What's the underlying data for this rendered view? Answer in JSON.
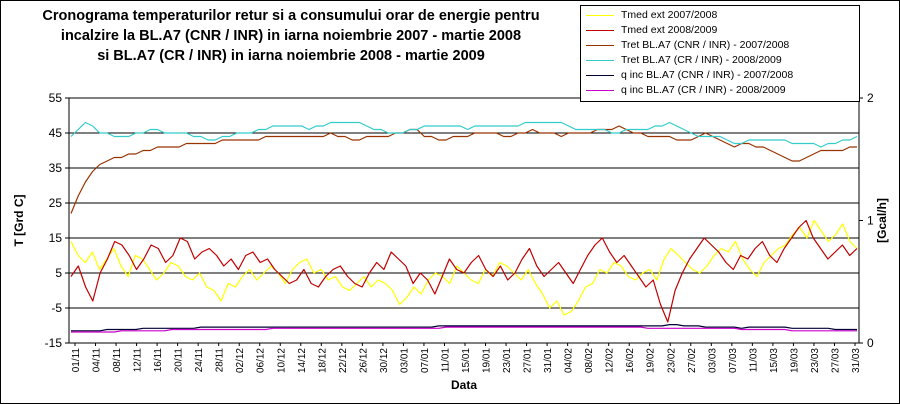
{
  "title_lines": [
    "Cronograma temperaturilor retur si a consumului orar de energie pentru",
    "incalzire la BL.A7 (CNR / INR) in iarna noiembrie 2007 - martie 2008",
    "si BL.A7 (CR / INR) in iarna noiembrie 2008 - martie 2009"
  ],
  "chart_data": {
    "type": "line",
    "xlabel": "Data",
    "ylabel": "T [Grd C]",
    "y2label": "[Gcal/h]",
    "ylim": [
      -15,
      55
    ],
    "yticks": [
      -15,
      -5,
      5,
      15,
      25,
      35,
      45,
      55
    ],
    "ytick_labels": [
      "-15",
      "-5",
      "5",
      "15",
      "25",
      "35",
      "45",
      "55"
    ],
    "y2lim": [
      0,
      2
    ],
    "y2ticks": [
      0,
      1,
      2
    ],
    "y2tick_labels": [
      "0",
      "1",
      "2"
    ],
    "grid": "horizontal",
    "x_tick_labels": [
      "01/11",
      "04/11",
      "08/11",
      "12/11",
      "16/11",
      "20/11",
      "24/11",
      "28/11",
      "02/12",
      "06/12",
      "10/12",
      "14/12",
      "18/12",
      "22/12",
      "26/12",
      "30/12",
      "03/01",
      "07/01",
      "11/01",
      "15/01",
      "19/01",
      "23/01",
      "27/01",
      "31/01",
      "04/02",
      "08/02",
      "12/02",
      "16/02",
      "19/02",
      "23/02",
      "27/02",
      "03/03",
      "07/03",
      "11/03",
      "15/03",
      "19/03",
      "23/03",
      "27/03",
      "31/03"
    ],
    "series": [
      {
        "name": "Tmed ext 2007/2008",
        "color": "#ffff00",
        "axis": "left",
        "values": [
          14,
          10,
          8,
          11,
          6,
          9,
          12,
          7,
          4,
          10,
          9,
          6,
          3,
          5,
          8,
          7,
          4,
          3,
          5,
          1,
          0,
          -3,
          2,
          1,
          4,
          6,
          3,
          5,
          7,
          5,
          2,
          6,
          8,
          9,
          5,
          6,
          3,
          4,
          1,
          0,
          2,
          4,
          1,
          3,
          2,
          0,
          -4,
          -2,
          1,
          -1,
          3,
          5,
          4,
          2,
          7,
          5,
          3,
          2,
          6,
          4,
          8,
          7,
          5,
          3,
          6,
          2,
          -1,
          -5,
          -3,
          -7,
          -6,
          -3,
          1,
          2,
          6,
          5,
          8,
          7,
          4,
          3,
          5,
          6,
          3,
          9,
          12,
          10,
          8,
          6,
          5,
          7,
          10,
          12,
          11,
          14,
          9,
          6,
          4,
          8,
          10,
          12,
          13,
          16,
          18,
          15,
          20,
          17,
          14,
          16,
          19,
          14,
          12
        ]
      },
      {
        "name": "Tmed ext 2008/2009",
        "color": "#c00000",
        "axis": "left",
        "values": [
          4,
          7,
          1,
          -3,
          5,
          9,
          14,
          13,
          10,
          6,
          9,
          13,
          12,
          8,
          10,
          15,
          14,
          9,
          11,
          12,
          10,
          7,
          9,
          6,
          10,
          11,
          8,
          9,
          6,
          4,
          2,
          3,
          6,
          2,
          1,
          4,
          6,
          7,
          4,
          2,
          1,
          5,
          8,
          6,
          11,
          9,
          7,
          2,
          5,
          3,
          -1,
          4,
          9,
          6,
          5,
          8,
          10,
          6,
          4,
          7,
          3,
          5,
          9,
          12,
          7,
          4,
          6,
          8,
          5,
          2,
          6,
          10,
          13,
          15,
          11,
          8,
          10,
          7,
          4,
          1,
          3,
          -4,
          -9,
          0,
          5,
          9,
          12,
          15,
          13,
          11,
          8,
          6,
          10,
          9,
          12,
          14,
          10,
          8,
          12,
          15,
          18,
          20,
          15,
          12,
          9,
          11,
          13,
          10,
          12
        ]
      },
      {
        "name": "Tret BL.A7 (CNR / INR) - 2007/2008",
        "color": "#993300",
        "axis": "left",
        "values": [
          22,
          27,
          31,
          34,
          36,
          37,
          38,
          38,
          39,
          39,
          40,
          40,
          41,
          41,
          41,
          41,
          42,
          42,
          42,
          42,
          42,
          43,
          43,
          43,
          43,
          43,
          43,
          44,
          44,
          44,
          44,
          44,
          44,
          44,
          44,
          44,
          45,
          44,
          44,
          43,
          43,
          44,
          44,
          44,
          44,
          45,
          45,
          46,
          46,
          44,
          44,
          43,
          43,
          44,
          44,
          44,
          45,
          45,
          45,
          45,
          44,
          44,
          45,
          45,
          46,
          45,
          45,
          45,
          44,
          45,
          45,
          45,
          45,
          46,
          46,
          46,
          47,
          46,
          45,
          45,
          44,
          44,
          44,
          44,
          43,
          43,
          43,
          44,
          45,
          44,
          43,
          42,
          41,
          42,
          42,
          41,
          41,
          40,
          39,
          38,
          37,
          37,
          38,
          39,
          40,
          40,
          40,
          40,
          41,
          41
        ]
      },
      {
        "name": "Tret BL.A7 (CR / INR) - 2008/2009",
        "color": "#33cccc",
        "axis": "left",
        "values": [
          44,
          46,
          48,
          47,
          45,
          45,
          44,
          44,
          44,
          45,
          45,
          46,
          46,
          45,
          45,
          45,
          45,
          44,
          44,
          43,
          43,
          44,
          44,
          45,
          45,
          45,
          46,
          46,
          47,
          47,
          47,
          47,
          47,
          46,
          47,
          47,
          48,
          48,
          48,
          48,
          48,
          47,
          46,
          46,
          45,
          45,
          45,
          46,
          46,
          47,
          47,
          47,
          47,
          47,
          47,
          46,
          47,
          47,
          47,
          47,
          47,
          47,
          47,
          48,
          48,
          48,
          48,
          48,
          48,
          47,
          46,
          46,
          46,
          46,
          46,
          45,
          45,
          46,
          46,
          46,
          46,
          47,
          47,
          48,
          47,
          46,
          45,
          44,
          44,
          44,
          44,
          43,
          42,
          42,
          43,
          43,
          43,
          43,
          43,
          43,
          42,
          42,
          42,
          42,
          41,
          42,
          42,
          43,
          43,
          44
        ]
      },
      {
        "name": "q inc BL.A7 (CNR / INR) - 2007/2008",
        "color": "#000033",
        "axis": "right",
        "values": [
          0.1,
          0.1,
          0.1,
          0.1,
          0.1,
          0.11,
          0.11,
          0.11,
          0.11,
          0.11,
          0.12,
          0.12,
          0.12,
          0.12,
          0.12,
          0.12,
          0.12,
          0.12,
          0.13,
          0.13,
          0.13,
          0.13,
          0.13,
          0.13,
          0.13,
          0.13,
          0.13,
          0.13,
          0.13,
          0.13,
          0.13,
          0.13,
          0.13,
          0.13,
          0.13,
          0.13,
          0.13,
          0.13,
          0.13,
          0.13,
          0.13,
          0.13,
          0.13,
          0.13,
          0.13,
          0.13,
          0.13,
          0.13,
          0.13,
          0.13,
          0.13,
          0.14,
          0.14,
          0.14,
          0.14,
          0.14,
          0.14,
          0.14,
          0.14,
          0.14,
          0.14,
          0.14,
          0.14,
          0.14,
          0.14,
          0.14,
          0.14,
          0.14,
          0.14,
          0.14,
          0.14,
          0.14,
          0.14,
          0.14,
          0.14,
          0.14,
          0.14,
          0.14,
          0.14,
          0.14,
          0.14,
          0.14,
          0.14,
          0.15,
          0.15,
          0.14,
          0.14,
          0.14,
          0.13,
          0.13,
          0.13,
          0.13,
          0.13,
          0.12,
          0.13,
          0.13,
          0.13,
          0.13,
          0.13,
          0.13,
          0.12,
          0.12,
          0.12,
          0.12,
          0.12,
          0.12,
          0.11,
          0.11,
          0.11,
          0.11
        ]
      },
      {
        "name": "q inc BL.A7 (CR / INR) - 2008/2009",
        "color": "#cc00cc",
        "axis": "right",
        "values": [
          0.09,
          0.09,
          0.09,
          0.09,
          0.09,
          0.09,
          0.09,
          0.1,
          0.1,
          0.1,
          0.1,
          0.1,
          0.1,
          0.1,
          0.11,
          0.11,
          0.11,
          0.11,
          0.11,
          0.11,
          0.11,
          0.11,
          0.11,
          0.11,
          0.11,
          0.11,
          0.11,
          0.11,
          0.12,
          0.12,
          0.12,
          0.12,
          0.12,
          0.12,
          0.12,
          0.12,
          0.12,
          0.12,
          0.12,
          0.12,
          0.12,
          0.12,
          0.12,
          0.12,
          0.12,
          0.12,
          0.12,
          0.12,
          0.12,
          0.12,
          0.12,
          0.12,
          0.13,
          0.13,
          0.13,
          0.13,
          0.13,
          0.13,
          0.13,
          0.13,
          0.13,
          0.13,
          0.13,
          0.13,
          0.13,
          0.13,
          0.13,
          0.13,
          0.13,
          0.13,
          0.13,
          0.13,
          0.13,
          0.13,
          0.13,
          0.13,
          0.13,
          0.13,
          0.13,
          0.13,
          0.12,
          0.12,
          0.12,
          0.12,
          0.12,
          0.12,
          0.12,
          0.12,
          0.12,
          0.12,
          0.12,
          0.12,
          0.12,
          0.11,
          0.11,
          0.11,
          0.11,
          0.11,
          0.11,
          0.11,
          0.1,
          0.1,
          0.1,
          0.1,
          0.1,
          0.1,
          0.1,
          0.1,
          0.1,
          0.1
        ]
      }
    ]
  }
}
